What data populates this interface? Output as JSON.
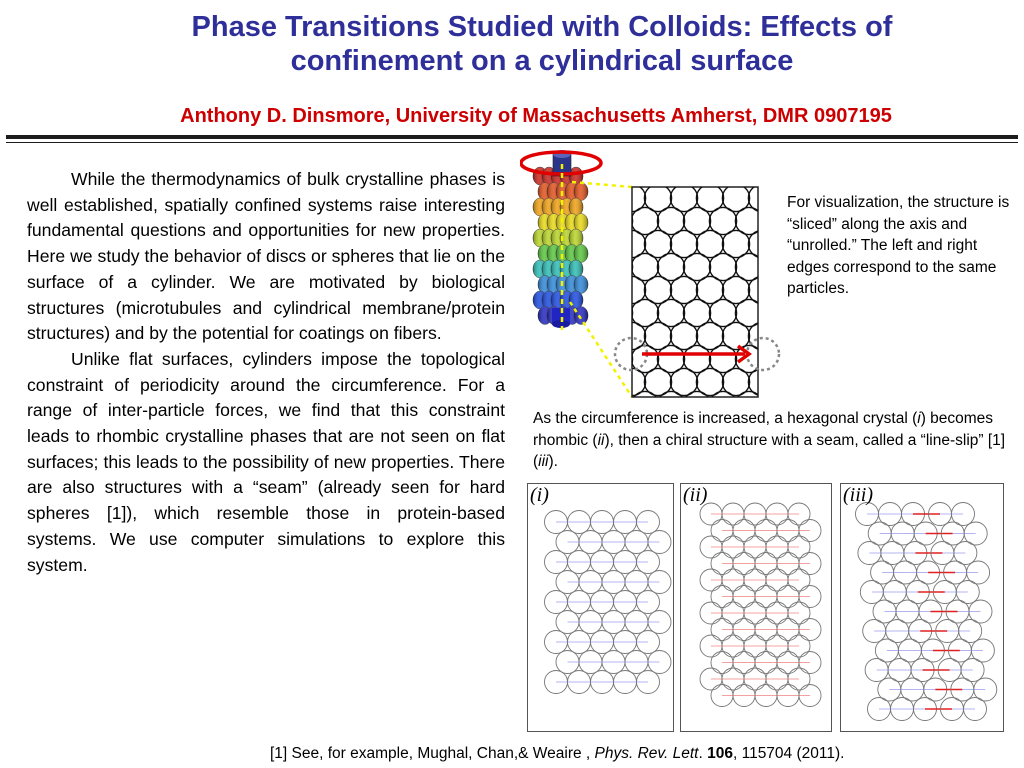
{
  "header": {
    "title_line1": "Phase Transitions Studied with Colloids: Effects of",
    "title_line2": "confinement on a cylindrical surface",
    "subtitle": "Anthony D. Dinsmore, University of  Massachusetts Amherst, DMR 0907195"
  },
  "body": {
    "paragraph1": "While the thermodynamics of bulk crystalline phases is well established, spatially confined systems raise interesting fundamental questions and opportunities for new properties. Here we study the behavior of discs or spheres that lie on the surface of a cylinder.  We are motivated by biological structures (microtubules and cylindrical membrane/protein structures) and by the potential for coatings on fibers.",
    "paragraph2": "Unlike flat surfaces, cylinders impose the topological constraint of periodicity around the circumference. For a range of inter-particle forces, we find that this constraint leads to rhombic crystalline phases that are not seen on flat surfaces; this leads to the possibility of new properties. There are also structures with a “seam” (already seen for hard spheres [1]), which resemble those in protein-based systems.  We use computer simulations to explore this system."
  },
  "visualization_note": "For visualization, the structure is “sliced” along the axis and “unrolled.” The left and right edges correspond to the same particles.",
  "caption": {
    "part1": "As the circumference is increased, a hexagonal crystal (",
    "i": "i",
    "part2": ") becomes rhombic (",
    "ii": "ii",
    "part3": "), then a chiral structure with a seam, called a “line-slip” [1] (",
    "iii": "iii",
    "part4": ")."
  },
  "panels": [
    {
      "label": "(i)"
    },
    {
      "label": "(ii)"
    },
    {
      "label": "(iii)"
    }
  ],
  "reference": {
    "part1": "[1] See, for example, Mughal, Chan,& Weaire , ",
    "journal": "Phys. Rev. Lett",
    "dot": ". ",
    "volume": "106",
    "part2": ", 115704 (2011)."
  },
  "colors": {
    "title": "#2f2f9a",
    "subtitle": "#cc0000",
    "arrow": "#e00000",
    "dotted_link": "#f2f200",
    "cylinder_top": "#cc0000",
    "cylinder_bottom": "#0000cc"
  }
}
